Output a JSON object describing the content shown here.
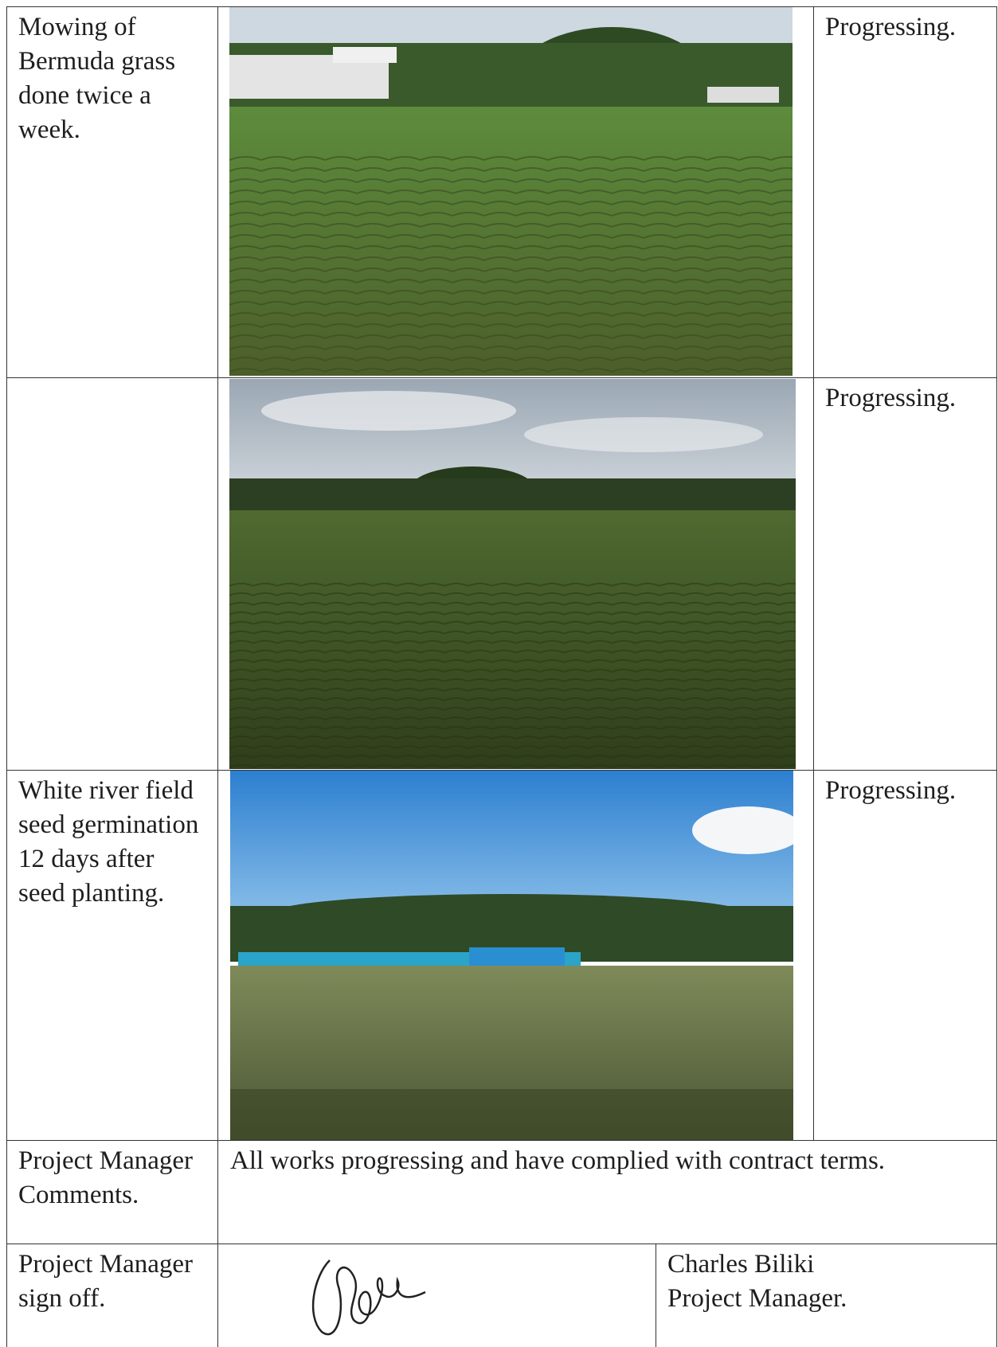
{
  "table": {
    "rows": [
      {
        "description": "Mowing of Bermuda grass done twice a week.",
        "status": "Progressing."
      },
      {
        "status": "Progressing."
      },
      {
        "description": "White river field seed germination 12 days after seed planting.",
        "status": "Progressing."
      }
    ],
    "comments": {
      "label": "Project Manager Comments.",
      "text": "All works progressing and have complied with contract terms."
    },
    "signoff": {
      "label": "Project Manager sign off.",
      "name": "Charles Biliki",
      "role": "Project Manager."
    }
  }
}
